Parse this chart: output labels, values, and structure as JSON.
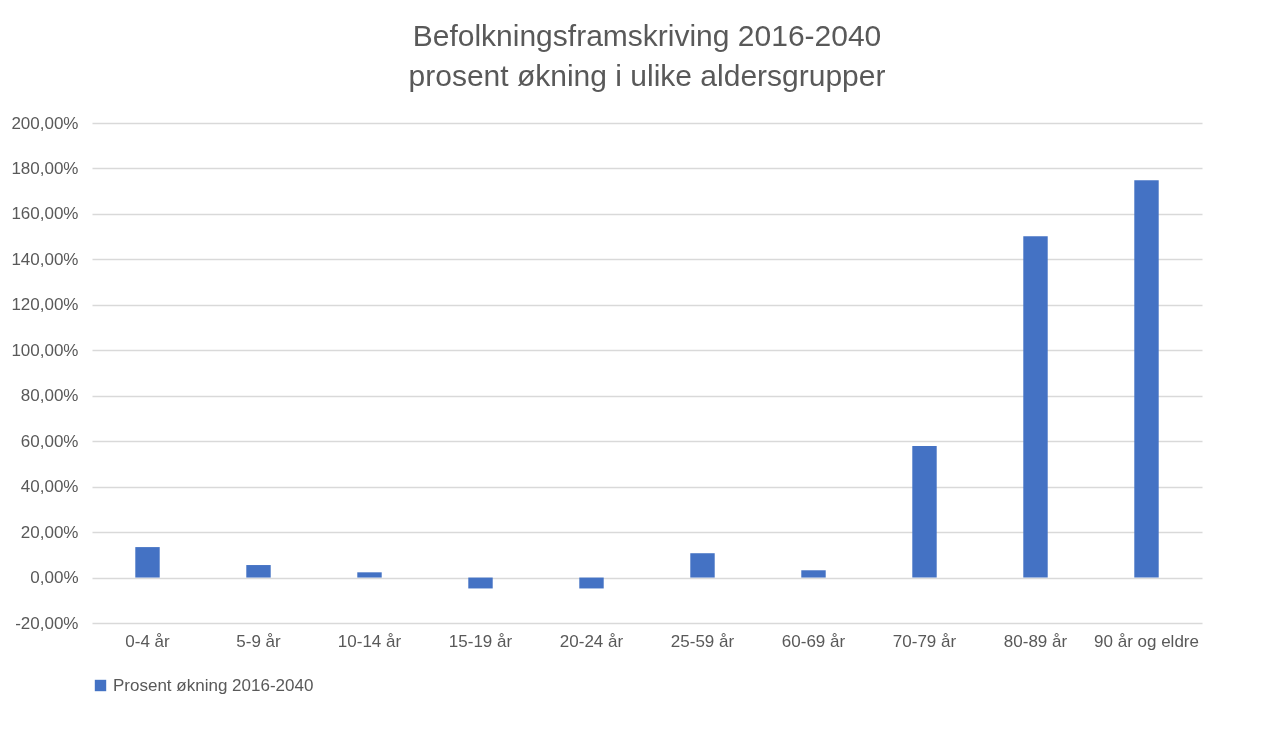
{
  "chart_data": {
    "type": "bar",
    "title": "Befolkningsframskriving 2016-2040\nprosent økning i ulike aldersgrupper",
    "categories": [
      "0-4 år",
      "5-9 år",
      "10-14 år",
      "15-19 år",
      "20-24 år",
      "25-59 år",
      "60-69 år",
      "70-79 år",
      "80-89 år",
      "90 år og eldre"
    ],
    "series": [
      {
        "name": "Prosent økning 2016-2040",
        "color": "#4472c4",
        "values": [
          13.4,
          5.5,
          2.3,
          -4.8,
          -4.8,
          10.7,
          3.2,
          57.9,
          150.2,
          174.8
        ]
      }
    ],
    "ylim": [
      -20,
      200
    ],
    "yticks": [
      {
        "value": -20,
        "label": "-20,00%"
      },
      {
        "value": 0,
        "label": "0,00%"
      },
      {
        "value": 20,
        "label": "20,00%"
      },
      {
        "value": 40,
        "label": "40,00%"
      },
      {
        "value": 60,
        "label": "60,00%"
      },
      {
        "value": 80,
        "label": "80,00%"
      },
      {
        "value": 100,
        "label": "100,00%"
      },
      {
        "value": 120,
        "label": "120,00%"
      },
      {
        "value": 140,
        "label": "140,00%"
      },
      {
        "value": 160,
        "label": "160,00%"
      },
      {
        "value": 180,
        "label": "180,00%"
      },
      {
        "value": 200,
        "label": "200,00%"
      }
    ],
    "grid": "y",
    "legend": "bottom"
  }
}
